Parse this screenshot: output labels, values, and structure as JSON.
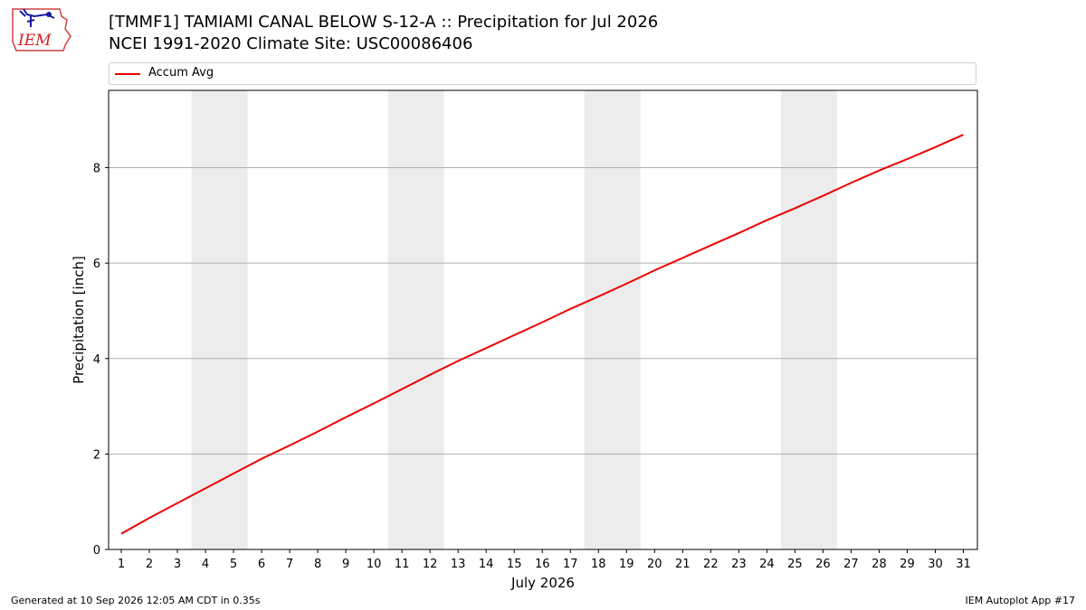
{
  "logo": {
    "text": "IEM"
  },
  "title": {
    "line1": "[TMMF1] TAMIAMI CANAL BELOW S-12-A :: Precipitation for Jul 2026",
    "line2": "NCEI 1991-2020 Climate Site: USC00086406"
  },
  "footer": {
    "left": "Generated at 10 Sep 2026 12:05 AM CDT in 0.35s",
    "right": "IEM Autoplot App #17"
  },
  "colors": {
    "line": "#ee0000",
    "weekend": "#ececec",
    "grid": "#b0b0b0"
  },
  "chart_data": {
    "type": "line",
    "xlabel": "July 2026",
    "ylabel": "Precipitation [inch]",
    "xlim": [
      0.55,
      31.5
    ],
    "ylim": [
      0,
      9.62
    ],
    "x_ticks": [
      1,
      2,
      3,
      4,
      5,
      6,
      7,
      8,
      9,
      10,
      11,
      12,
      13,
      14,
      15,
      16,
      17,
      18,
      19,
      20,
      21,
      22,
      23,
      24,
      25,
      26,
      27,
      28,
      29,
      30,
      31
    ],
    "y_ticks": [
      0,
      2,
      4,
      6,
      8
    ],
    "grid": "horizontal",
    "legend_placement": "top",
    "weekend_bands": [
      [
        3.5,
        5.5
      ],
      [
        10.5,
        12.5
      ],
      [
        17.5,
        19.5
      ],
      [
        24.5,
        26.5
      ]
    ],
    "series": [
      {
        "name": "Accum Avg",
        "color": "#ee0000",
        "x": [
          1,
          2,
          3,
          4,
          5,
          6,
          7,
          8,
          9,
          10,
          11,
          12,
          13,
          14,
          15,
          16,
          17,
          18,
          19,
          20,
          21,
          22,
          23,
          24,
          25,
          26,
          27,
          28,
          29,
          30,
          31
        ],
        "y": [
          0.33,
          0.66,
          0.97,
          1.28,
          1.59,
          1.9,
          2.18,
          2.47,
          2.77,
          3.06,
          3.36,
          3.66,
          3.95,
          4.22,
          4.49,
          4.76,
          5.04,
          5.3,
          5.57,
          5.85,
          6.11,
          6.37,
          6.63,
          6.9,
          7.15,
          7.41,
          7.68,
          7.94,
          8.18,
          8.43,
          8.69
        ]
      }
    ]
  }
}
